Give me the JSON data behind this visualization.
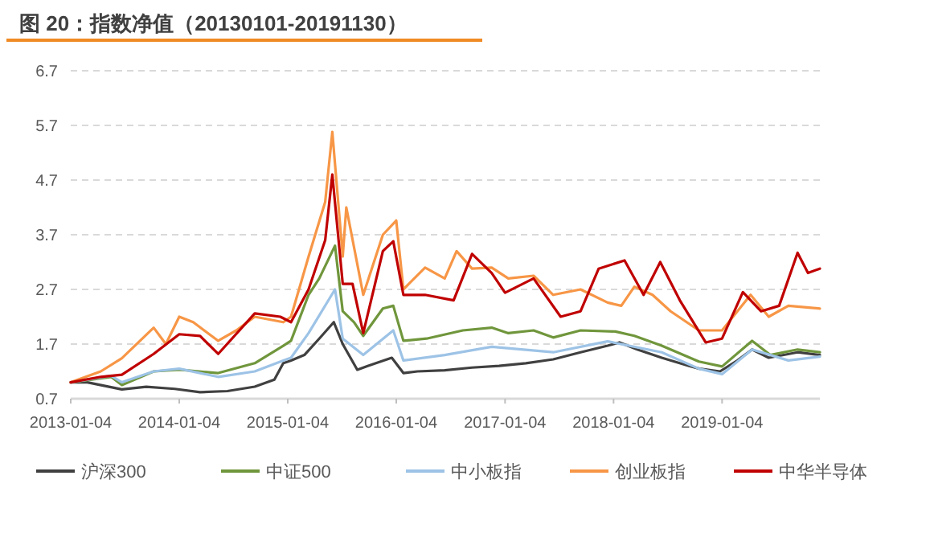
{
  "chart_data": {
    "type": "line",
    "title": "图 20：指数净值（20130101-20191130）",
    "xlim": [
      "2013-01-04",
      "2019-11-29"
    ],
    "xticks": [
      "2013-01-04",
      "2014-01-04",
      "2015-01-04",
      "2016-01-04",
      "2017-01-04",
      "2018-01-04",
      "2019-01-04"
    ],
    "ylim": [
      0.7,
      6.7
    ],
    "yticks": [
      0.7,
      1.7,
      2.7,
      3.7,
      4.7,
      5.7,
      6.7
    ],
    "grid": "y",
    "legend": "bottom",
    "marker": "none",
    "line_style": "solid",
    "series": [
      {
        "name": "沪深300",
        "color": "#404040",
        "x": [
          "2013-01-04",
          "2013-03-01",
          "2013-06-25",
          "2013-09-15",
          "2013-12-20",
          "2014-03-15",
          "2014-06-15",
          "2014-09-15",
          "2014-11-20",
          "2014-12-20",
          "2015-01-15",
          "2015-03-01",
          "2015-04-20",
          "2015-06-08",
          "2015-07-08",
          "2015-08-26",
          "2015-09-30",
          "2015-12-20",
          "2016-01-28",
          "2016-03-15",
          "2016-06-15",
          "2016-09-15",
          "2016-12-15",
          "2017-03-15",
          "2017-06-15",
          "2017-09-15",
          "2017-12-15",
          "2018-01-24",
          "2018-03-25",
          "2018-06-15",
          "2018-09-15",
          "2018-10-20",
          "2018-12-28",
          "2019-02-25",
          "2019-04-15",
          "2019-06-10",
          "2019-09-15",
          "2019-11-29"
        ],
        "values": [
          1.0,
          1.0,
          0.87,
          0.92,
          0.88,
          0.82,
          0.84,
          0.92,
          1.05,
          1.35,
          1.4,
          1.5,
          1.8,
          2.1,
          1.7,
          1.23,
          1.3,
          1.45,
          1.17,
          1.2,
          1.22,
          1.27,
          1.3,
          1.35,
          1.42,
          1.55,
          1.67,
          1.73,
          1.6,
          1.45,
          1.3,
          1.25,
          1.2,
          1.4,
          1.6,
          1.45,
          1.55,
          1.5
        ]
      },
      {
        "name": "中证500",
        "color": "#70963c",
        "x": [
          "2013-01-04",
          "2013-05-20",
          "2013-06-25",
          "2013-10-10",
          "2014-01-04",
          "2014-05-15",
          "2014-09-15",
          "2014-12-20",
          "2015-01-15",
          "2015-03-15",
          "2015-04-20",
          "2015-06-12",
          "2015-07-08",
          "2015-08-15",
          "2015-09-15",
          "2015-11-20",
          "2015-12-25",
          "2016-01-28",
          "2016-04-15",
          "2016-08-15",
          "2016-11-20",
          "2017-01-15",
          "2017-04-10",
          "2017-06-15",
          "2017-09-15",
          "2018-01-10",
          "2018-03-15",
          "2018-06-15",
          "2018-10-18",
          "2019-01-04",
          "2019-04-15",
          "2019-06-15",
          "2019-09-15",
          "2019-11-29"
        ],
        "values": [
          1.0,
          1.1,
          0.95,
          1.2,
          1.23,
          1.17,
          1.35,
          1.67,
          1.76,
          2.6,
          2.9,
          3.5,
          2.3,
          2.1,
          1.85,
          2.35,
          2.4,
          1.76,
          1.8,
          1.95,
          2.0,
          1.9,
          1.95,
          1.82,
          1.95,
          1.93,
          1.85,
          1.67,
          1.38,
          1.29,
          1.76,
          1.5,
          1.6,
          1.55
        ]
      },
      {
        "name": "中小板指",
        "color": "#9dc3e6",
        "x": [
          "2013-01-04",
          "2013-05-20",
          "2013-06-25",
          "2013-10-10",
          "2014-01-04",
          "2014-05-15",
          "2014-09-15",
          "2014-12-20",
          "2015-01-15",
          "2015-03-15",
          "2015-06-12",
          "2015-07-08",
          "2015-09-15",
          "2015-12-25",
          "2016-01-28",
          "2016-06-15",
          "2016-11-20",
          "2017-06-15",
          "2017-12-15",
          "2018-06-15",
          "2018-10-18",
          "2019-01-04",
          "2019-04-15",
          "2019-08-15",
          "2019-11-29"
        ],
        "values": [
          1.0,
          1.12,
          1.0,
          1.2,
          1.25,
          1.1,
          1.2,
          1.4,
          1.45,
          1.9,
          2.7,
          1.8,
          1.5,
          1.95,
          1.4,
          1.5,
          1.65,
          1.55,
          1.75,
          1.55,
          1.25,
          1.15,
          1.6,
          1.4,
          1.47
        ]
      },
      {
        "name": "创业板指",
        "color": "#f79646",
        "x": [
          "2013-01-04",
          "2013-04-15",
          "2013-06-25",
          "2013-10-10",
          "2013-11-20",
          "2014-01-04",
          "2014-02-20",
          "2014-05-15",
          "2014-07-15",
          "2014-09-15",
          "2014-12-20",
          "2015-01-15",
          "2015-03-15",
          "2015-05-10",
          "2015-06-03",
          "2015-07-08",
          "2015-07-20",
          "2015-09-15",
          "2015-11-20",
          "2016-01-04",
          "2016-01-28",
          "2016-04-10",
          "2016-06-15",
          "2016-07-25",
          "2016-09-15",
          "2016-11-20",
          "2017-01-15",
          "2017-04-10",
          "2017-06-15",
          "2017-09-15",
          "2017-12-15",
          "2018-01-30",
          "2018-03-15",
          "2018-05-15",
          "2018-07-15",
          "2018-10-18",
          "2019-01-04",
          "2019-04-10",
          "2019-06-10",
          "2019-08-15",
          "2019-11-29"
        ],
        "values": [
          1.0,
          1.2,
          1.44,
          2.0,
          1.7,
          2.2,
          2.1,
          1.76,
          1.95,
          2.2,
          2.1,
          2.2,
          3.3,
          4.3,
          5.58,
          3.3,
          4.2,
          2.6,
          3.7,
          3.96,
          2.7,
          3.1,
          2.9,
          3.4,
          3.08,
          3.1,
          2.9,
          2.95,
          2.6,
          2.7,
          2.46,
          2.4,
          2.75,
          2.6,
          2.3,
          1.95,
          1.95,
          2.6,
          2.2,
          2.4,
          2.35
        ]
      },
      {
        "name": "中华半导体",
        "color": "#c00000",
        "x": [
          "2013-01-04",
          "2013-04-15",
          "2013-06-25",
          "2013-10-10",
          "2014-01-04",
          "2014-03-15",
          "2014-05-15",
          "2014-09-15",
          "2014-12-10",
          "2015-01-15",
          "2015-03-15",
          "2015-05-10",
          "2015-06-03",
          "2015-07-08",
          "2015-08-10",
          "2015-09-15",
          "2015-11-20",
          "2015-12-25",
          "2016-01-28",
          "2016-04-10",
          "2016-07-15",
          "2016-09-15",
          "2016-11-20",
          "2017-01-04",
          "2017-04-10",
          "2017-07-10",
          "2017-09-15",
          "2017-11-15",
          "2018-02-10",
          "2018-04-15",
          "2018-06-10",
          "2018-08-15",
          "2018-11-10",
          "2019-01-04",
          "2019-03-15",
          "2019-05-15",
          "2019-07-15",
          "2019-09-15",
          "2019-10-20",
          "2019-11-29"
        ],
        "values": [
          1.0,
          1.1,
          1.14,
          1.52,
          1.88,
          1.85,
          1.52,
          2.26,
          2.2,
          2.1,
          2.7,
          3.6,
          4.8,
          2.8,
          2.8,
          1.9,
          3.4,
          3.58,
          2.6,
          2.6,
          2.5,
          3.35,
          3.0,
          2.64,
          2.9,
          2.2,
          2.3,
          3.08,
          3.23,
          2.6,
          3.2,
          2.5,
          1.73,
          1.8,
          2.65,
          2.3,
          2.4,
          3.37,
          3.0,
          3.08
        ]
      }
    ]
  }
}
